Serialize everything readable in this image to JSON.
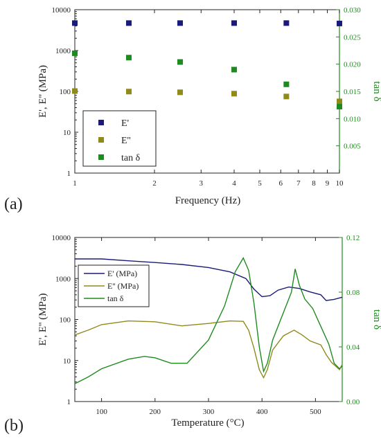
{
  "colors": {
    "E_prime": "#1a1a7a",
    "E_double": "#8f8a1a",
    "tan_delta": "#1f8a1f",
    "axis_right": "#1f8a1f"
  },
  "chart_data": [
    {
      "panel_label": "(a)",
      "type": "scatter",
      "xlabel": "Frequency (Hz)",
      "ylabel": "E', E'' (MPa)",
      "y2label": "tan δ",
      "xscale": "log",
      "yscale": "log",
      "xlim": [
        1,
        10
      ],
      "ylim": [
        1,
        10000
      ],
      "y2lim": [
        0.0,
        0.03
      ],
      "xticks": [
        "1",
        "2",
        "3",
        "4",
        "5",
        "6",
        "7",
        "8",
        "9",
        "10"
      ],
      "yticks": [
        "1",
        "10",
        "100",
        "1000",
        "10000"
      ],
      "y2ticks": [
        "0.005",
        "0.010",
        "0.015",
        "0.020",
        "0.025",
        "0.030"
      ],
      "legend": {
        "placement": "bottom-left",
        "entries": [
          "E'",
          "E''",
          "tan δ"
        ]
      },
      "series": [
        {
          "name": "E'",
          "axis": "left",
          "x": [
            1,
            1.6,
            2.5,
            4,
            6.3,
            10
          ],
          "values": [
            4700,
            4700,
            4700,
            4700,
            4700,
            4600
          ]
        },
        {
          "name": "E''",
          "axis": "left",
          "x": [
            1,
            1.6,
            2.5,
            4,
            6.3,
            10
          ],
          "values": [
            102,
            99,
            95,
            88,
            75,
            57
          ]
        },
        {
          "name": "tan δ",
          "axis": "right",
          "x": [
            1,
            1.6,
            2.5,
            4,
            6.3,
            10
          ],
          "values": [
            0.022,
            0.0212,
            0.0204,
            0.019,
            0.0163,
            0.0122
          ]
        }
      ]
    },
    {
      "panel_label": "(b)",
      "type": "line",
      "xlabel": "Temperature (°C)",
      "ylabel": "E', E'' (MPa)",
      "y2label": "tan δ",
      "yscale": "log",
      "xlim": [
        50,
        550
      ],
      "ylim": [
        1,
        10000
      ],
      "y2lim": [
        0.0,
        0.12
      ],
      "xticks": [
        "100",
        "200",
        "300",
        "400",
        "500"
      ],
      "yticks": [
        "1",
        "10",
        "100",
        "1000",
        "10000"
      ],
      "y2ticks": [
        "0.00",
        "0.04",
        "0.08",
        "0.12"
      ],
      "legend": {
        "placement": "top-left",
        "entries": [
          "E' (MPa)",
          "E'' (MPa)",
          "tan δ"
        ]
      },
      "series": [
        {
          "name": "E' (MPa)",
          "axis": "left",
          "x": [
            50,
            100,
            150,
            200,
            250,
            300,
            340,
            370,
            385,
            400,
            415,
            430,
            450,
            470,
            490,
            510,
            520,
            535,
            550
          ],
          "values": [
            3000,
            3000,
            2700,
            2450,
            2200,
            1850,
            1450,
            1000,
            550,
            360,
            380,
            520,
            620,
            570,
            470,
            400,
            290,
            310,
            350
          ]
        },
        {
          "name": "E'' (MPa)",
          "axis": "left",
          "x": [
            50,
            75,
            100,
            150,
            200,
            250,
            300,
            340,
            365,
            375,
            385,
            395,
            403,
            410,
            420,
            440,
            460,
            475,
            490,
            510,
            520,
            530,
            545,
            550
          ],
          "values": [
            42,
            55,
            75,
            92,
            88,
            70,
            80,
            92,
            90,
            55,
            20,
            6,
            3.8,
            6,
            18,
            40,
            55,
            42,
            30,
            24,
            14,
            9,
            6,
            8
          ]
        },
        {
          "name": "tan δ",
          "axis": "right",
          "x": [
            50,
            75,
            100,
            150,
            180,
            200,
            230,
            260,
            300,
            330,
            350,
            365,
            375,
            385,
            395,
            403,
            410,
            420,
            440,
            455,
            462,
            470,
            480,
            495,
            510,
            525,
            535,
            545,
            550
          ],
          "values": [
            0.013,
            0.018,
            0.024,
            0.031,
            0.033,
            0.032,
            0.028,
            0.028,
            0.045,
            0.07,
            0.095,
            0.105,
            0.096,
            0.072,
            0.04,
            0.022,
            0.028,
            0.045,
            0.065,
            0.08,
            0.097,
            0.085,
            0.075,
            0.068,
            0.055,
            0.042,
            0.028,
            0.024,
            0.026
          ]
        }
      ]
    }
  ]
}
